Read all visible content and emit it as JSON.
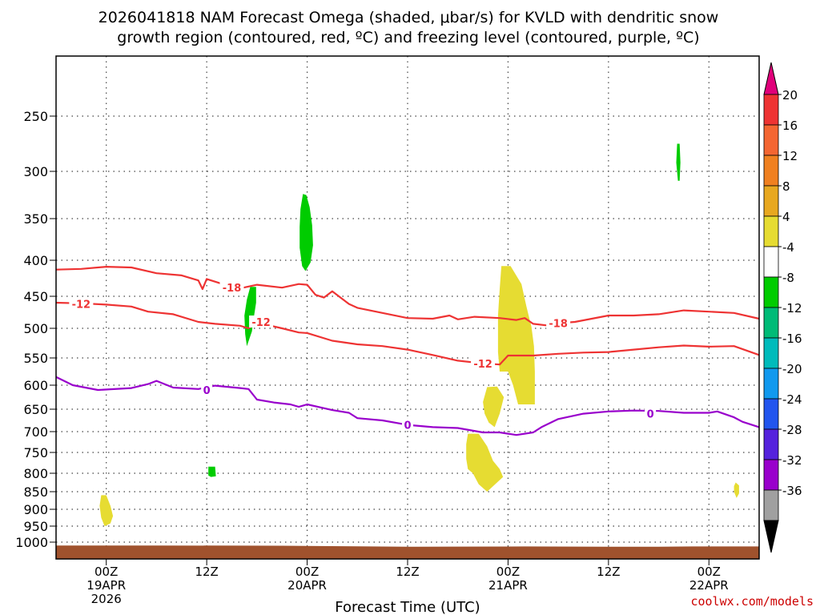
{
  "title_line1": "2026041818 NAM Forecast Omega (shaded, μbar/s) for KVLD with dendritic snow",
  "title_line2": "growth region (contoured, red, ºC) and freezing level (contoured, purple, ºC)",
  "credit": "coolwx.com/models",
  "chart_data": {
    "type": "time-height",
    "xlabel": "Forecast Time (UTC)",
    "x_ticks": [
      {
        "hour": 6,
        "label": "00Z",
        "sub1": "19APR",
        "sub2": "2026"
      },
      {
        "hour": 18,
        "label": "12Z",
        "sub1": "",
        "sub2": ""
      },
      {
        "hour": 30,
        "label": "00Z",
        "sub1": "20APR",
        "sub2": ""
      },
      {
        "hour": 42,
        "label": "12Z",
        "sub1": "",
        "sub2": ""
      },
      {
        "hour": 54,
        "label": "00Z",
        "sub1": "21APR",
        "sub2": ""
      },
      {
        "hour": 66,
        "label": "12Z",
        "sub1": "",
        "sub2": ""
      },
      {
        "hour": 78,
        "label": "00Z",
        "sub1": "22APR",
        "sub2": ""
      }
    ],
    "x_range": [
      0,
      84
    ],
    "y_pressure_ticks": [
      250,
      300,
      350,
      400,
      450,
      500,
      550,
      600,
      650,
      700,
      750,
      800,
      850,
      900,
      950,
      1000
    ],
    "y_range": [
      200,
      1025
    ],
    "grid": true,
    "ground_pressure": 1005,
    "ground_color": "#a0522d",
    "contours": [
      {
        "label": "-18",
        "color": "#ee3333",
        "label_at": [
          {
            "hour": 21,
            "p": 438
          },
          {
            "hour": 60,
            "p": 492
          }
        ],
        "points": [
          [
            0,
            413
          ],
          [
            3,
            412
          ],
          [
            6,
            409
          ],
          [
            9,
            410
          ],
          [
            12,
            418
          ],
          [
            15,
            421
          ],
          [
            17,
            428
          ],
          [
            17.5,
            440
          ],
          [
            18,
            426
          ],
          [
            21,
            437
          ],
          [
            22,
            439
          ],
          [
            24,
            434
          ],
          [
            27,
            438
          ],
          [
            29,
            433
          ],
          [
            30,
            434
          ],
          [
            31,
            448
          ],
          [
            32,
            452
          ],
          [
            33,
            443
          ],
          [
            35,
            462
          ],
          [
            36,
            468
          ],
          [
            39,
            476
          ],
          [
            42,
            484
          ],
          [
            45,
            485
          ],
          [
            47,
            480
          ],
          [
            48,
            486
          ],
          [
            50,
            482
          ],
          [
            53,
            484
          ],
          [
            55,
            487
          ],
          [
            56,
            484
          ],
          [
            57,
            493
          ],
          [
            59,
            496
          ],
          [
            60,
            492
          ],
          [
            62,
            490
          ],
          [
            66,
            480
          ],
          [
            69,
            480
          ],
          [
            72,
            478
          ],
          [
            75,
            472
          ],
          [
            78,
            474
          ],
          [
            81,
            476
          ],
          [
            84,
            485
          ]
        ]
      },
      {
        "label": "-12",
        "color": "#ee3333",
        "label_at": [
          {
            "hour": 3,
            "p": 462
          },
          {
            "hour": 24.5,
            "p": 490
          },
          {
            "hour": 51,
            "p": 560
          }
        ],
        "points": [
          [
            0,
            460
          ],
          [
            3,
            461
          ],
          [
            6,
            463
          ],
          [
            9,
            466
          ],
          [
            11,
            474
          ],
          [
            14,
            478
          ],
          [
            17,
            490
          ],
          [
            19,
            493
          ],
          [
            22,
            496
          ],
          [
            23,
            500
          ],
          [
            24,
            491
          ],
          [
            27,
            500
          ],
          [
            29,
            507
          ],
          [
            30,
            508
          ],
          [
            33,
            521
          ],
          [
            36,
            527
          ],
          [
            39,
            530
          ],
          [
            42,
            536
          ],
          [
            45,
            545
          ],
          [
            48,
            555
          ],
          [
            51,
            560
          ],
          [
            53,
            562
          ],
          [
            54,
            546
          ],
          [
            57,
            546
          ],
          [
            60,
            543
          ],
          [
            63,
            541
          ],
          [
            66,
            540
          ],
          [
            69,
            536
          ],
          [
            72,
            532
          ],
          [
            75,
            529
          ],
          [
            78,
            531
          ],
          [
            81,
            530
          ],
          [
            84,
            545
          ]
        ]
      },
      {
        "label": "0",
        "color": "#9900cc",
        "label_at": [
          {
            "hour": 18,
            "p": 610
          },
          {
            "hour": 42,
            "p": 685
          },
          {
            "hour": 71,
            "p": 660
          }
        ],
        "points": [
          [
            0,
            585
          ],
          [
            2,
            600
          ],
          [
            5,
            610
          ],
          [
            9,
            606
          ],
          [
            11,
            598
          ],
          [
            12,
            592
          ],
          [
            14,
            605
          ],
          [
            17,
            608
          ],
          [
            19,
            601
          ],
          [
            22,
            606
          ],
          [
            23,
            608
          ],
          [
            24,
            630
          ],
          [
            26,
            636
          ],
          [
            28,
            640
          ],
          [
            29,
            645
          ],
          [
            30,
            640
          ],
          [
            33,
            652
          ],
          [
            35,
            658
          ],
          [
            36,
            670
          ],
          [
            39,
            675
          ],
          [
            42,
            685
          ],
          [
            45,
            690
          ],
          [
            48,
            692
          ],
          [
            51,
            702
          ],
          [
            53,
            702
          ],
          [
            55,
            708
          ],
          [
            57,
            702
          ],
          [
            58,
            690
          ],
          [
            60,
            672
          ],
          [
            63,
            660
          ],
          [
            66,
            655
          ],
          [
            69,
            653
          ],
          [
            72,
            654
          ],
          [
            75,
            658
          ],
          [
            78,
            658
          ],
          [
            79,
            655
          ],
          [
            81,
            668
          ],
          [
            82,
            678
          ],
          [
            84,
            690
          ]
        ]
      }
    ],
    "omega_blobs": [
      {
        "class": "-8 to -4",
        "color": "#00cc00",
        "polygon": [
          [
            29.5,
            324
          ],
          [
            29.9,
            325
          ],
          [
            30.3,
            338
          ],
          [
            30.6,
            358
          ],
          [
            30.7,
            382
          ],
          [
            30.4,
            403
          ],
          [
            29.8,
            415
          ],
          [
            29.4,
            408
          ],
          [
            29.1,
            385
          ],
          [
            29.1,
            360
          ],
          [
            29.2,
            340
          ]
        ]
      },
      {
        "class": "-8 to -4",
        "color": "#00cc00",
        "polygon": [
          [
            23.2,
            437
          ],
          [
            23.9,
            437
          ],
          [
            23.9,
            460
          ],
          [
            23.6,
            485
          ],
          [
            23.4,
            505
          ],
          [
            22.8,
            530
          ],
          [
            22.6,
            510
          ],
          [
            22.5,
            480
          ],
          [
            22.8,
            455
          ]
        ]
      },
      {
        "class": "-8 to -4",
        "color": "#00cc00",
        "polygon": [
          [
            74.2,
            275
          ],
          [
            74.5,
            275
          ],
          [
            74.6,
            292
          ],
          [
            74.5,
            310
          ],
          [
            74.3,
            310
          ],
          [
            74.1,
            292
          ]
        ]
      },
      {
        "class": "-8 to -4",
        "color": "#00cc00",
        "polygon": [
          [
            18.2,
            784
          ],
          [
            19.0,
            784
          ],
          [
            19.1,
            808
          ],
          [
            18.5,
            810
          ],
          [
            18.2,
            806
          ]
        ]
      },
      {
        "class": "4 to 8",
        "color": "#e6dc32",
        "polygon": [
          [
            53.2,
            408
          ],
          [
            54.3,
            408
          ],
          [
            55.6,
            433
          ],
          [
            56.2,
            466
          ],
          [
            56.8,
            498
          ],
          [
            57.1,
            530
          ],
          [
            57.2,
            575
          ],
          [
            57.2,
            640
          ],
          [
            55.2,
            640
          ],
          [
            54.6,
            600
          ],
          [
            54.0,
            575
          ],
          [
            53.0,
            575
          ],
          [
            52.8,
            540
          ],
          [
            52.8,
            480
          ],
          [
            53.0,
            440
          ]
        ]
      },
      {
        "class": "4 to 8",
        "color": "#e6dc32",
        "polygon": [
          [
            51.5,
            604
          ],
          [
            52.7,
            603
          ],
          [
            53.5,
            625
          ],
          [
            53.0,
            660
          ],
          [
            52.4,
            690
          ],
          [
            51.7,
            680
          ],
          [
            51.2,
            660
          ],
          [
            51.0,
            635
          ]
        ]
      },
      {
        "class": "4 to 8",
        "color": "#e6dc32",
        "polygon": [
          [
            49.2,
            705
          ],
          [
            50.5,
            705
          ],
          [
            51.5,
            735
          ],
          [
            52.2,
            770
          ],
          [
            53.0,
            790
          ],
          [
            53.4,
            810
          ],
          [
            51.5,
            850
          ],
          [
            50.5,
            830
          ],
          [
            49.8,
            800
          ],
          [
            49.2,
            790
          ],
          [
            49.0,
            765
          ],
          [
            49.0,
            730
          ]
        ]
      },
      {
        "class": "4 to 8",
        "color": "#e6dc32",
        "polygon": [
          [
            5.4,
            860
          ],
          [
            6.0,
            860
          ],
          [
            6.5,
            890
          ],
          [
            6.8,
            920
          ],
          [
            6.5,
            942
          ],
          [
            5.8,
            950
          ],
          [
            5.4,
            925
          ],
          [
            5.2,
            890
          ]
        ]
      },
      {
        "class": "4 to 8",
        "color": "#e6dc32",
        "polygon": [
          [
            81.2,
            825
          ],
          [
            81.6,
            833
          ],
          [
            81.6,
            855
          ],
          [
            81.3,
            868
          ],
          [
            81.0,
            850
          ],
          [
            81.0,
            835
          ]
        ]
      }
    ],
    "colorbar": {
      "labels": [
        "20",
        "16",
        "12",
        "8",
        "4",
        "-4",
        "-8",
        "-12",
        "-16",
        "-20",
        "-24",
        "-28",
        "-32",
        "-36"
      ],
      "colors": [
        "#ee3333",
        "#f46632",
        "#f08020",
        "#e8a820",
        "#e6dc32",
        "#ffffff",
        "#00cc00",
        "#00bb77",
        "#00bbbb",
        "#1199ee",
        "#2255ee",
        "#5522dd",
        "#9900cc",
        "#a0a0a0"
      ],
      "top_cap_color": "#e0007a",
      "bottom_cap_color": "#000000"
    }
  }
}
